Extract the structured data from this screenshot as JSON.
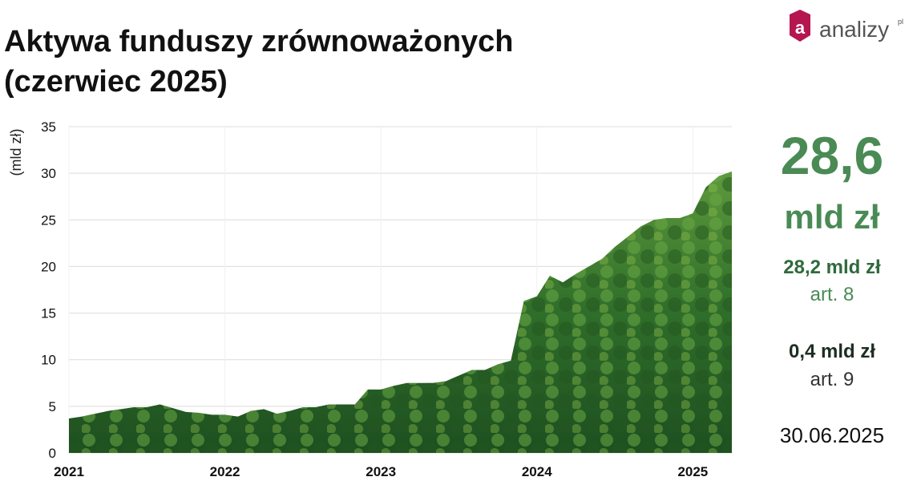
{
  "chart_data": {
    "type": "area",
    "title": [
      "Aktywa funduszy zrównoważonych",
      "(czerwiec 2025)"
    ],
    "y_label": "(mld zł)",
    "categories": [
      "2021",
      null,
      null,
      null,
      null,
      null,
      null,
      null,
      null,
      null,
      null,
      null,
      "2022",
      null,
      null,
      null,
      null,
      null,
      null,
      null,
      null,
      null,
      null,
      null,
      "2023",
      null,
      null,
      null,
      null,
      null,
      null,
      null,
      null,
      null,
      null,
      null,
      "2024",
      null,
      null,
      null,
      null,
      null,
      null,
      null,
      null,
      null,
      null,
      null,
      "2025",
      null,
      null,
      null
    ],
    "values": [
      3.7,
      3.9,
      4.2,
      4.5,
      4.7,
      4.9,
      4.9,
      5.2,
      4.8,
      4.4,
      4.3,
      4.1,
      4.1,
      3.9,
      4.5,
      4.7,
      4.2,
      4.5,
      4.9,
      4.9,
      5.2,
      5.2,
      5.2,
      6.8,
      6.8,
      7.2,
      7.5,
      7.5,
      7.5,
      7.7,
      8.3,
      8.9,
      8.9,
      9.5,
      9.9,
      16.3,
      16.8,
      19.0,
      18.3,
      19.2,
      20.0,
      20.8,
      22.1,
      23.2,
      24.3,
      25.0,
      25.2,
      25.2,
      25.7,
      28.5,
      29.7,
      30.2
    ],
    "color": "#3f7d35",
    "ylim": [
      0,
      35
    ],
    "yticks": [
      0,
      5,
      10,
      15,
      20,
      25,
      30,
      35
    ],
    "grid": true
  },
  "summary": {
    "total": "28,6",
    "unit": "mld zł",
    "art8_value": "28,2 mld zł",
    "art8_label": "art. 8",
    "art9_value": "0,4 mld zł",
    "art9_label": "art. 9",
    "date": "30.06.2025"
  },
  "logo": {
    "name": "analizy",
    "suffix": "pl"
  }
}
